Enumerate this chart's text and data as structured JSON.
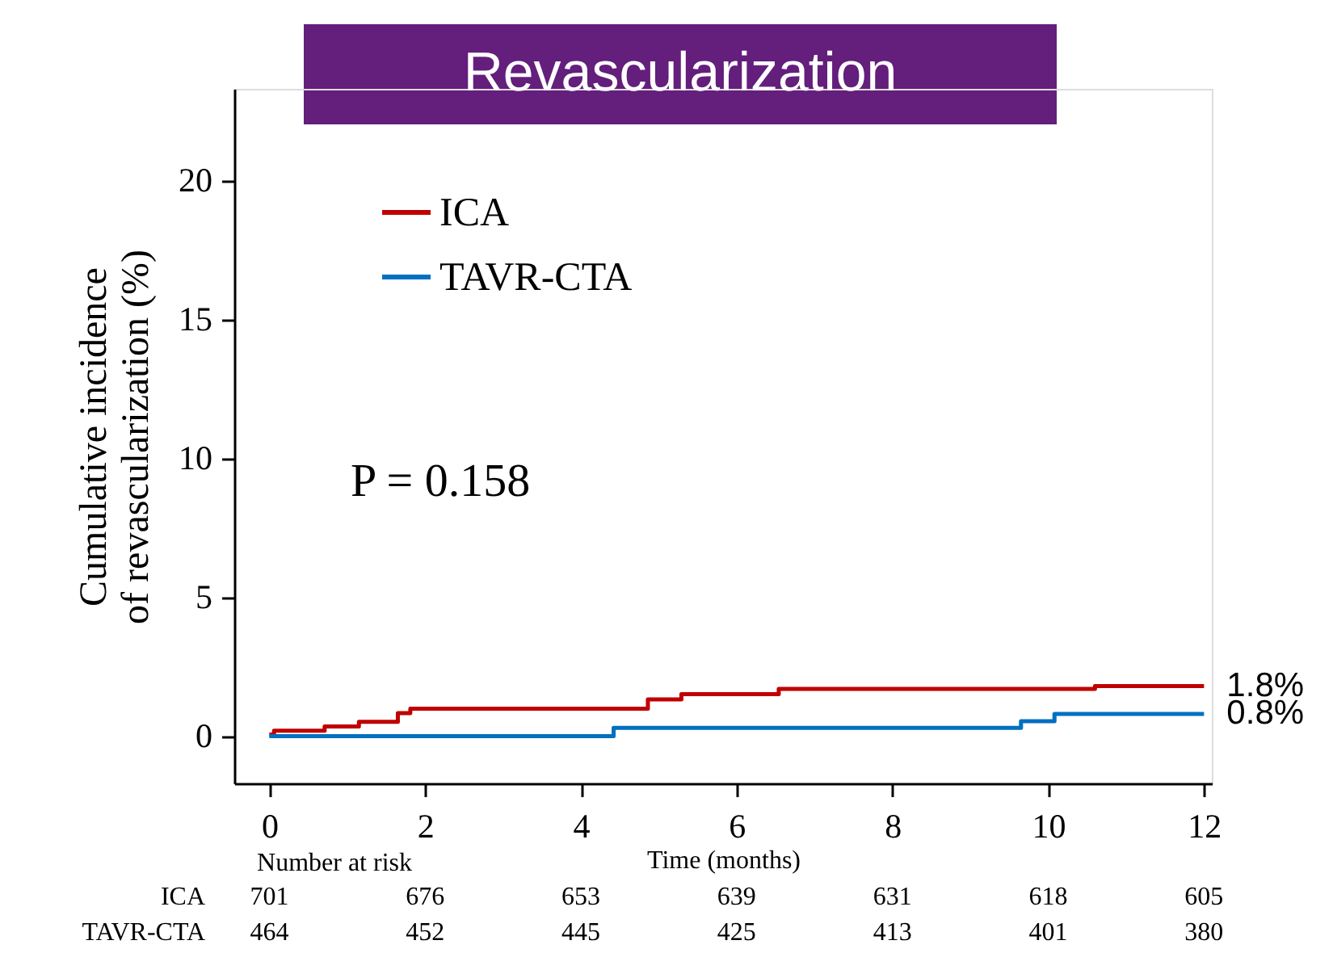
{
  "chart_data": {
    "type": "step",
    "title": "Revascularization",
    "xlabel": "Time (months)",
    "ylabel": "Cumulative incidence\nof revascularization (%)",
    "xlim": [
      -0.45,
      12.1
    ],
    "xticks": [
      0,
      2,
      4,
      6,
      8,
      10,
      12
    ],
    "ylim": [
      -1.7,
      23.3
    ],
    "yticks": [
      0,
      5,
      10,
      15,
      20
    ],
    "grid": false,
    "legend": "top left",
    "marker": "none",
    "line_style": "solid",
    "series": [
      {
        "name": "ICA",
        "color": "#c00000",
        "x": [
          0,
          0.06,
          0.71,
          1.15,
          1.65,
          1.81,
          4.86,
          5.29,
          6.54,
          10.6,
          12
        ],
        "values": [
          0.06,
          0.2,
          0.35,
          0.52,
          0.83,
          0.99,
          1.32,
          1.51,
          1.7,
          1.8,
          1.8
        ]
      },
      {
        "name": "TAVR-CTA",
        "color": "#0070c0",
        "x": [
          0,
          4.42,
          9.65,
          10.08,
          12
        ],
        "values": [
          0,
          0.3,
          0.54,
          0.8,
          0.8
        ]
      }
    ],
    "annotations": [
      "P = 0.158",
      {
        "text": "1.8%",
        "x": 12,
        "y": 1.8
      },
      {
        "text": "0.8%",
        "x": 12,
        "y": 0.8
      },
      "Number at risk",
      "ICA",
      "701",
      "676",
      "653",
      "639",
      "631",
      "618",
      "605",
      "TAVR-CTA",
      "464",
      "452",
      "445",
      "425",
      "413",
      "401",
      "380"
    ]
  }
}
